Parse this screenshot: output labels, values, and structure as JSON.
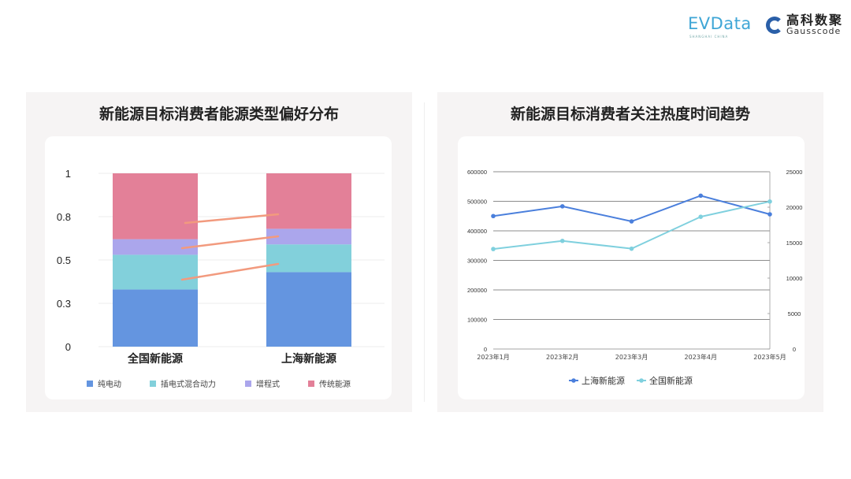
{
  "logos": {
    "evdata": "EVData",
    "evdata_sub": "SHANGHAI CHINA",
    "gauss_cn": "高科数聚",
    "gauss_en": "Gausscode"
  },
  "chart_data": [
    {
      "type": "bar",
      "stacked": true,
      "title": "新能源目标消费者能源类型偏好分布",
      "categories": [
        "全国新能源",
        "上海新能源"
      ],
      "series": [
        {
          "name": "纯电动",
          "color": "#6495e0",
          "values": [
            0.33,
            0.43
          ]
        },
        {
          "name": "插电式混合动力",
          "color": "#82d0db",
          "values": [
            0.2,
            0.16
          ]
        },
        {
          "name": "增程式",
          "color": "#aba6ec",
          "values": [
            0.09,
            0.09
          ]
        },
        {
          "name": "传统能源",
          "color": "#e38098",
          "values": [
            0.38,
            0.32
          ]
        }
      ],
      "yticks": [
        {
          "value": 0,
          "label": "0"
        },
        {
          "value": 0.25,
          "label": "0.3"
        },
        {
          "value": 0.5,
          "label": "0.5"
        },
        {
          "value": 0.75,
          "label": "0.8"
        },
        {
          "value": 1,
          "label": "1"
        }
      ],
      "ylim": [
        0,
        1
      ],
      "grid": true,
      "legend": "bottom",
      "annotation_color": "#f29a7e"
    },
    {
      "type": "line",
      "title": "新能源目标消费者关注热度时间趋势",
      "x": [
        "2023年1月",
        "2023年2月",
        "2023年3月",
        "2023年4月",
        "2023年5月"
      ],
      "y_left": {
        "ylim": [
          0,
          600000
        ],
        "ticks": [
          0,
          100000,
          200000,
          300000,
          400000,
          500000,
          600000
        ]
      },
      "y_right": {
        "ylim": [
          0,
          25000
        ],
        "ticks": [
          0,
          5000,
          10000,
          15000,
          20000,
          25000
        ]
      },
      "series": [
        {
          "name": "上海新能源",
          "axis": "left",
          "color": "#4a7fdc",
          "values": [
            450000,
            483000,
            432000,
            519000,
            456000
          ]
        },
        {
          "name": "全国新能源",
          "axis": "right",
          "color": "#7fd0de",
          "values": [
            14100,
            15250,
            14150,
            18650,
            20800
          ]
        }
      ],
      "grid": true,
      "legend": "bottom"
    }
  ]
}
